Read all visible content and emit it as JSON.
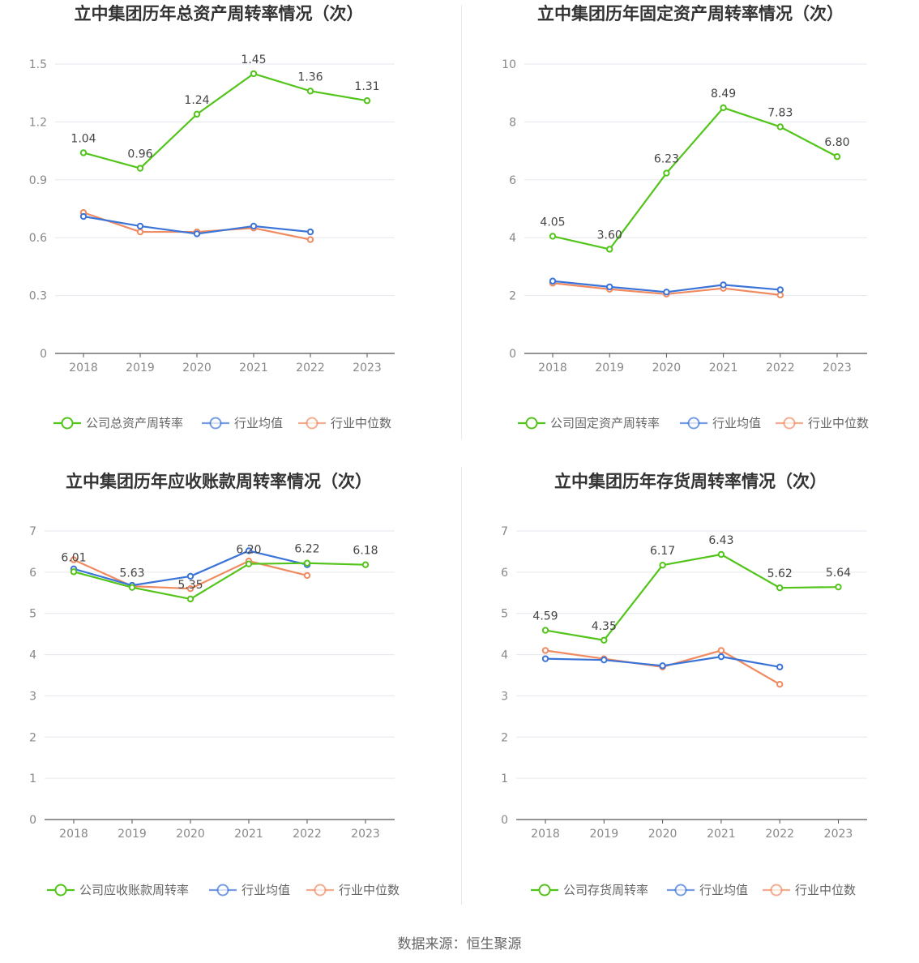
{
  "colors": {
    "company": "#52c41a",
    "avg": "#3b74d8",
    "median": "#f08a60",
    "grid": "#e6e6ef",
    "axis": "#555555"
  },
  "footer": "数据来源：恒生聚源",
  "chart_data": [
    {
      "type": "line",
      "title": "立中集团历年总资产周转率情况（次）",
      "categories": [
        "2018",
        "2019",
        "2020",
        "2021",
        "2022",
        "2023"
      ],
      "ylim": [
        0,
        1.5
      ],
      "yticks": [
        "0",
        "0.3",
        "0.6",
        "0.9",
        "1.2",
        "1.5"
      ],
      "grid": true,
      "legend": "bottom",
      "series": [
        {
          "name": "公司总资产周转率",
          "role": "company",
          "values": [
            1.04,
            0.96,
            1.24,
            1.45,
            1.36,
            1.31
          ],
          "labels": [
            "1.04",
            "0.96",
            "1.24",
            "1.45",
            "1.36",
            "1.31"
          ]
        },
        {
          "name": "行业均值",
          "role": "avg",
          "values": [
            0.71,
            0.66,
            0.62,
            0.66,
            0.63,
            null
          ]
        },
        {
          "name": "行业中位数",
          "role": "median",
          "values": [
            0.73,
            0.63,
            0.63,
            0.65,
            0.59,
            null
          ]
        }
      ]
    },
    {
      "type": "line",
      "title": "立中集团历年固定资产周转率情况（次）",
      "categories": [
        "2018",
        "2019",
        "2020",
        "2021",
        "2022",
        "2023"
      ],
      "ylim": [
        0,
        10
      ],
      "yticks": [
        "0",
        "2",
        "4",
        "6",
        "8",
        "10"
      ],
      "grid": true,
      "legend": "bottom",
      "series": [
        {
          "name": "公司固定资产周转率",
          "role": "company",
          "values": [
            4.05,
            3.6,
            6.23,
            8.49,
            7.83,
            6.8
          ],
          "labels": [
            "4.05",
            "3.60",
            "6.23",
            "8.49",
            "7.83",
            "6.80"
          ]
        },
        {
          "name": "行业均值",
          "role": "avg",
          "values": [
            2.5,
            2.3,
            2.12,
            2.37,
            2.2,
            null
          ]
        },
        {
          "name": "行业中位数",
          "role": "median",
          "values": [
            2.43,
            2.22,
            2.05,
            2.25,
            2.02,
            null
          ]
        }
      ]
    },
    {
      "type": "line",
      "title": "立中集团历年应收账款周转率情况（次）",
      "categories": [
        "2018",
        "2019",
        "2020",
        "2021",
        "2022",
        "2023"
      ],
      "ylim": [
        0,
        7
      ],
      "yticks": [
        "0",
        "1",
        "2",
        "3",
        "4",
        "5",
        "6",
        "7"
      ],
      "grid": true,
      "legend": "bottom",
      "series": [
        {
          "name": "公司应收账款周转率",
          "role": "company",
          "values": [
            6.01,
            5.63,
            5.35,
            6.2,
            6.22,
            6.18
          ],
          "labels": [
            "6.01",
            "5.63",
            "5.35",
            "6.20",
            "6.22",
            "6.18"
          ]
        },
        {
          "name": "行业均值",
          "role": "avg",
          "values": [
            6.08,
            5.68,
            5.9,
            6.52,
            6.18,
            null
          ]
        },
        {
          "name": "行业中位数",
          "role": "median",
          "values": [
            6.3,
            5.66,
            5.6,
            6.27,
            5.92,
            null
          ]
        }
      ]
    },
    {
      "type": "line",
      "title": "立中集团历年存货周转率情况（次）",
      "categories": [
        "2018",
        "2019",
        "2020",
        "2021",
        "2022",
        "2023"
      ],
      "ylim": [
        0,
        7
      ],
      "yticks": [
        "0",
        "1",
        "2",
        "3",
        "4",
        "5",
        "6",
        "7"
      ],
      "grid": true,
      "legend": "bottom",
      "series": [
        {
          "name": "公司存货周转率",
          "role": "company",
          "values": [
            4.59,
            4.35,
            6.17,
            6.43,
            5.62,
            5.64
          ],
          "labels": [
            "4.59",
            "4.35",
            "6.17",
            "6.43",
            "5.62",
            "5.64"
          ]
        },
        {
          "name": "行业均值",
          "role": "avg",
          "values": [
            3.9,
            3.87,
            3.73,
            3.95,
            3.7,
            null
          ]
        },
        {
          "name": "行业中位数",
          "role": "median",
          "values": [
            4.1,
            3.9,
            3.7,
            4.1,
            3.28,
            null
          ]
        }
      ]
    }
  ]
}
